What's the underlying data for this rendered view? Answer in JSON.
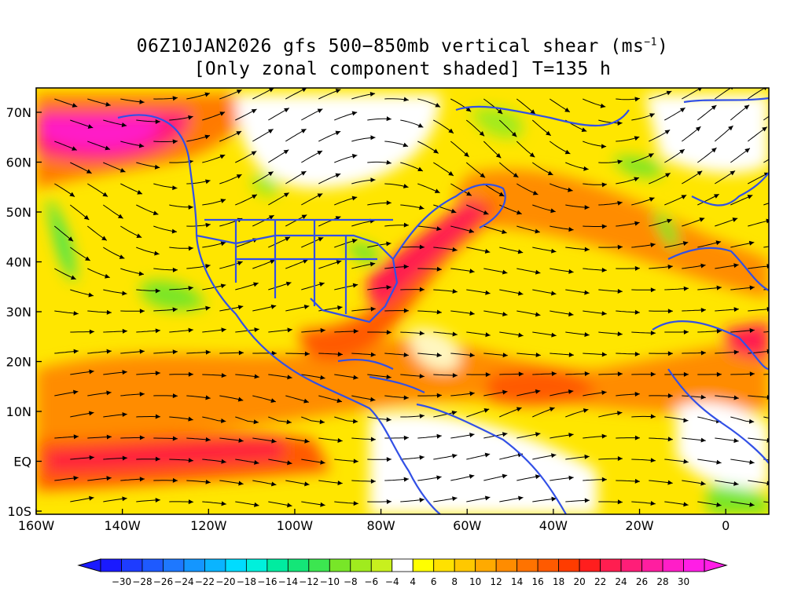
{
  "title": {
    "line1": "06Z10JAN2026 gfs 500−850mb vertical shear (ms",
    "line1_unit_sup": "−1",
    "line1_end": ")",
    "line2": "[Only zonal component shaded] T=135 h"
  },
  "axes": {
    "lon_labels": [
      "160W",
      "140W",
      "120W",
      "100W",
      "80W",
      "60W",
      "40W",
      "20W",
      "0"
    ],
    "lat_labels": [
      "70N",
      "60N",
      "50N",
      "40N",
      "30N",
      "20N",
      "10N",
      "EQ",
      "10S"
    ]
  },
  "colorbar": {
    "labels": [
      "−30",
      "−28",
      "−26",
      "−24",
      "−22",
      "−20",
      "−18",
      "−16",
      "−14",
      "−12",
      "−10",
      "−8",
      "−6",
      "−4",
      "4",
      "6",
      "8",
      "10",
      "12",
      "14",
      "16",
      "18",
      "20",
      "22",
      "24",
      "26",
      "28",
      "30"
    ],
    "colors": [
      "#1a1aff",
      "#1e3cff",
      "#1e5aff",
      "#1e78ff",
      "#1496ff",
      "#0ab4ff",
      "#00dcff",
      "#00f0dc",
      "#00eca0",
      "#14e678",
      "#3ce650",
      "#78e628",
      "#a0eb1e",
      "#c8f01e",
      "#ffffff",
      "#ffff00",
      "#ffe100",
      "#ffc800",
      "#ffaa00",
      "#ff8c00",
      "#ff7300",
      "#ff5a00",
      "#ff3c00",
      "#ff1e1e",
      "#ff1e50",
      "#ff1e78",
      "#ff1ea0",
      "#ff1ec8",
      "#ff1ee6"
    ]
  }
}
